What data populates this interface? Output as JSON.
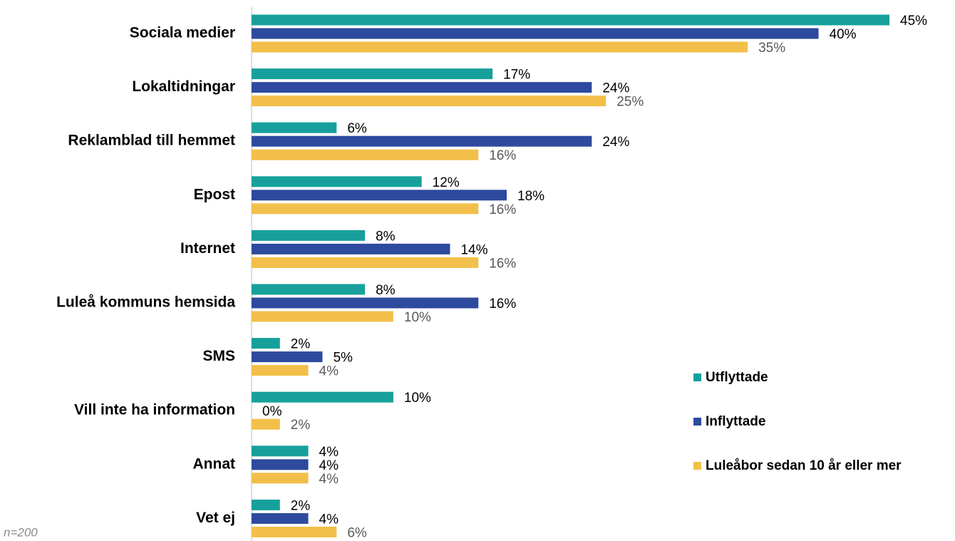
{
  "chart_data": {
    "type": "hbar",
    "categories": [
      "Sociala medier",
      "Lokaltidningar",
      "Reklamblad till hemmet",
      "Epost",
      "Internet",
      "Luleå kommuns hemsida",
      "SMS",
      "Vill inte ha information",
      "Annat",
      "Vet ej"
    ],
    "series": [
      {
        "name": "Utflyttade",
        "color": "#17a09b",
        "values": [
          45,
          17,
          6,
          12,
          8,
          8,
          2,
          10,
          4,
          2
        ],
        "value_labels": [
          "45%",
          "17%",
          "6%",
          "12%",
          "8%",
          "8%",
          "2%",
          "10%",
          "4%",
          "2%"
        ]
      },
      {
        "name": "Inflyttade",
        "color": "#2e4a9e",
        "values": [
          40,
          24,
          24,
          18,
          14,
          16,
          5,
          0,
          4,
          4
        ],
        "value_labels": [
          "40%",
          "24%",
          "24%",
          "18%",
          "14%",
          "16%",
          "5%",
          "0%",
          "4%",
          "4%"
        ]
      },
      {
        "name": "Luleåbor sedan 10 år eller mer",
        "color": "#f2c04a",
        "values": [
          35,
          25,
          16,
          16,
          16,
          10,
          4,
          2,
          4,
          6
        ],
        "value_labels": [
          "35%",
          "25%",
          "16%",
          "16%",
          "16%",
          "10%",
          "4%",
          "2%",
          "4%",
          "6%"
        ]
      }
    ],
    "note": "n=200"
  }
}
